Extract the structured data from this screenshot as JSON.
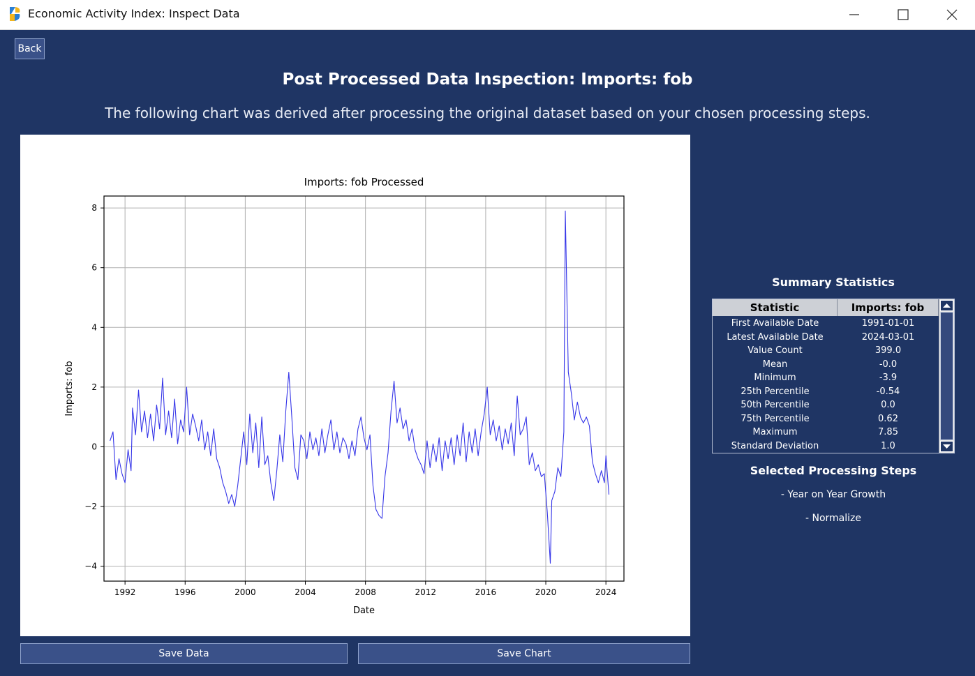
{
  "window": {
    "title": "Economic Activity Index: Inspect Data",
    "icons": {
      "app": "app-logo-icon",
      "minimize": "minimize-icon",
      "maximize": "maximize-icon",
      "close": "close-icon"
    }
  },
  "toolbar": {
    "back_label": "Back"
  },
  "page": {
    "title": "Post Processed Data Inspection: Imports: fob",
    "subtitle": "The following chart was derived after processing the original dataset based on your chosen processing steps."
  },
  "chart_data": {
    "type": "line",
    "title": "Imports: fob Processed",
    "xlabel": "Date",
    "ylabel": "Imports: fob",
    "xlim": [
      1990.6,
      2025.2
    ],
    "ylim": [
      -4.5,
      8.4
    ],
    "x_ticks": [
      1992,
      1996,
      2000,
      2004,
      2008,
      2012,
      2016,
      2020,
      2024
    ],
    "y_ticks": [
      -4,
      -2,
      0,
      2,
      4,
      6,
      8
    ],
    "y_tick_labels": [
      "−4",
      "−2",
      "0",
      "2",
      "4",
      "6",
      "8"
    ],
    "grid": true,
    "color": "#3535e8",
    "series": [
      {
        "x": [
          1991.0,
          1991.2,
          1991.4,
          1991.6,
          1991.8,
          1992.0,
          1992.2,
          1992.4,
          1992.5,
          1992.7,
          1992.9,
          1993.1,
          1993.3,
          1993.5,
          1993.7,
          1993.9,
          1994.1,
          1994.3,
          1994.5,
          1994.7,
          1994.9,
          1995.1,
          1995.3,
          1995.5,
          1995.7,
          1995.9,
          1996.1,
          1996.3,
          1996.5,
          1996.7,
          1996.9,
          1997.1,
          1997.3,
          1997.5,
          1997.7,
          1997.9,
          1998.1,
          1998.3,
          1998.5,
          1998.7,
          1998.9,
          1999.1,
          1999.3,
          1999.5,
          1999.7,
          1999.9,
          2000.1,
          2000.3,
          2000.5,
          2000.7,
          2000.9,
          2001.1,
          2001.3,
          2001.5,
          2001.7,
          2001.9,
          2002.1,
          2002.3,
          2002.5,
          2002.7,
          2002.9,
          2003.1,
          2003.3,
          2003.5,
          2003.7,
          2003.9,
          2004.1,
          2004.3,
          2004.5,
          2004.7,
          2004.9,
          2005.1,
          2005.3,
          2005.5,
          2005.7,
          2005.9,
          2006.1,
          2006.3,
          2006.5,
          2006.7,
          2006.9,
          2007.1,
          2007.3,
          2007.5,
          2007.7,
          2007.9,
          2008.1,
          2008.3,
          2008.5,
          2008.7,
          2008.9,
          2009.1,
          2009.3,
          2009.5,
          2009.7,
          2009.9,
          2010.1,
          2010.3,
          2010.5,
          2010.7,
          2010.9,
          2011.1,
          2011.3,
          2011.5,
          2011.7,
          2011.9,
          2012.1,
          2012.3,
          2012.5,
          2012.7,
          2012.9,
          2013.1,
          2013.3,
          2013.5,
          2013.7,
          2013.9,
          2014.1,
          2014.3,
          2014.5,
          2014.7,
          2014.9,
          2015.1,
          2015.3,
          2015.5,
          2015.7,
          2015.9,
          2016.1,
          2016.3,
          2016.5,
          2016.7,
          2016.9,
          2017.1,
          2017.3,
          2017.5,
          2017.7,
          2017.9,
          2018.1,
          2018.3,
          2018.5,
          2018.7,
          2018.9,
          2019.1,
          2019.3,
          2019.5,
          2019.7,
          2019.9,
          2020.1,
          2020.3,
          2020.4,
          2020.6,
          2020.8,
          2021.0,
          2021.2,
          2021.3,
          2021.5,
          2021.7,
          2021.9,
          2022.1,
          2022.3,
          2022.5,
          2022.7,
          2022.9,
          2023.1,
          2023.3,
          2023.5,
          2023.7,
          2023.9,
          2024.0,
          2024.2
        ],
        "y": [
          0.2,
          0.5,
          -1.1,
          -0.4,
          -0.9,
          -1.2,
          -0.1,
          -0.8,
          1.3,
          0.4,
          1.9,
          0.5,
          1.2,
          0.3,
          1.1,
          0.2,
          1.4,
          0.6,
          2.3,
          0.4,
          1.2,
          0.3,
          1.6,
          0.1,
          0.9,
          0.5,
          2.0,
          0.4,
          1.1,
          0.7,
          0.2,
          0.9,
          -0.1,
          0.5,
          -0.3,
          0.6,
          -0.4,
          -0.7,
          -1.2,
          -1.5,
          -1.9,
          -1.6,
          -2.0,
          -1.3,
          -0.4,
          0.5,
          -0.6,
          1.1,
          -0.2,
          0.8,
          -0.7,
          1.0,
          -0.6,
          -0.3,
          -1.2,
          -1.8,
          -0.8,
          0.4,
          -0.5,
          1.2,
          2.5,
          1.0,
          -0.7,
          -1.1,
          0.4,
          0.2,
          -0.4,
          0.5,
          -0.1,
          0.3,
          -0.3,
          0.6,
          -0.2,
          0.4,
          0.9,
          -0.1,
          0.5,
          -0.2,
          0.3,
          0.1,
          -0.4,
          0.2,
          -0.3,
          0.6,
          1.0,
          0.3,
          -0.1,
          0.4,
          -1.3,
          -2.1,
          -2.3,
          -2.4,
          -1.0,
          -0.2,
          1.2,
          2.2,
          0.8,
          1.3,
          0.6,
          0.9,
          0.2,
          0.6,
          -0.1,
          -0.4,
          -0.6,
          -0.9,
          0.2,
          -0.7,
          0.1,
          -0.5,
          0.3,
          -0.8,
          0.2,
          -0.4,
          0.3,
          -0.6,
          0.4,
          -0.3,
          0.8,
          -0.5,
          0.5,
          -0.2,
          0.6,
          -0.3,
          0.5,
          1.1,
          2.0,
          0.4,
          0.9,
          0.2,
          0.7,
          -0.1,
          0.6,
          0.1,
          0.8,
          -0.3,
          1.7,
          0.4,
          0.6,
          1.0,
          -0.6,
          -0.2,
          -0.8,
          -0.6,
          -1.0,
          -0.9,
          -2.2,
          -3.9,
          -1.8,
          -1.5,
          -0.7,
          -1.0,
          0.5,
          7.9,
          2.5,
          1.8,
          0.9,
          1.5,
          1.0,
          0.8,
          1.0,
          0.7,
          -0.5,
          -0.9,
          -1.2,
          -0.8,
          -1.2,
          -0.3,
          -1.6
        ]
      }
    ]
  },
  "actions": {
    "save_data": "Save Data",
    "save_chart": "Save Chart"
  },
  "stats": {
    "title": "Summary Statistics",
    "columns": [
      "Statistic",
      "Imports: fob"
    ],
    "rows": [
      [
        "First Available Date",
        "1991-01-01"
      ],
      [
        "Latest Available Date",
        "2024-03-01"
      ],
      [
        "Value Count",
        "399.0"
      ],
      [
        "Mean",
        "-0.0"
      ],
      [
        "Minimum",
        "-3.9"
      ],
      [
        "25th Percentile",
        "-0.54"
      ],
      [
        "50th Percentile",
        "0.0"
      ],
      [
        "75th Percentile",
        "0.62"
      ],
      [
        "Maximum",
        "7.85"
      ],
      [
        "Standard Deviation",
        "1.0"
      ]
    ]
  },
  "steps": {
    "title": "Selected Processing Steps",
    "items": [
      "- Year on Year Growth",
      "- Normalize"
    ]
  }
}
